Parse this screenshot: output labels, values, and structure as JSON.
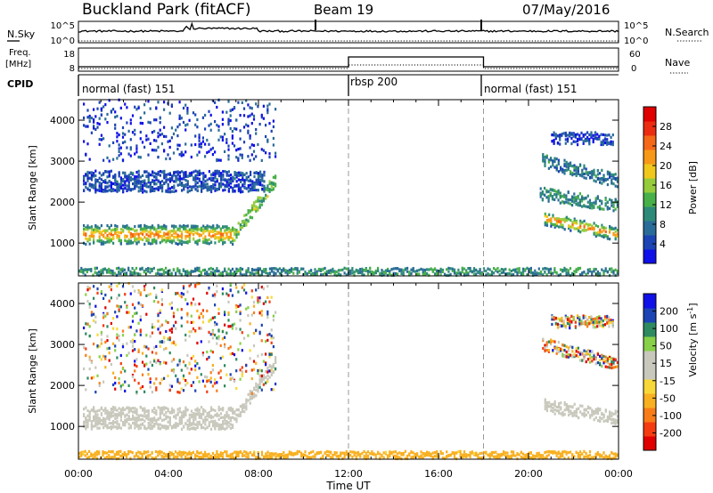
{
  "header": {
    "title": "Buckland Park (fitACF)",
    "beam": "Beam 19",
    "date": "07/May/2016"
  },
  "strips": {
    "nsky_label": "N.Sky",
    "nsky_ticks": [
      "10^5",
      "10^0"
    ],
    "nsearch_label": "N.Search",
    "nsearch_ticks": [
      "10^5",
      "10^0"
    ],
    "freq_label": "Freq.",
    "freq_unit": "[MHz]",
    "freq_ticks": [
      "18",
      "8"
    ],
    "nave_label": "Nave",
    "nave_ticks": [
      "60",
      "0"
    ],
    "cpid_label": "CPID"
  },
  "cpid_segments": [
    {
      "label": "normal (fast) 151",
      "start_hour": 0,
      "end_hour": 12
    },
    {
      "label": "rbsp 200",
      "start_hour": 12,
      "end_hour": 18
    },
    {
      "label": "normal (fast) 151",
      "start_hour": 18,
      "end_hour": 24
    }
  ],
  "colors": {
    "power_scale": [
      "#1010e8",
      "#1c44b4",
      "#2a6c98",
      "#2e8a78",
      "#48b048",
      "#96cc3c",
      "#f0c81c",
      "#f89818",
      "#f46818",
      "#ec2c10",
      "#e00000"
    ],
    "velocity_scale": [
      "#e00000",
      "#f43c10",
      "#f87c18",
      "#f8b020",
      "#f8d838",
      "#c8c8bc",
      "#c8c8bc",
      "#88d048",
      "#2e8a60",
      "#1c44b4",
      "#1010e8"
    ]
  },
  "chart_data": [
    {
      "type": "heatmap",
      "title": "",
      "xlabel": "",
      "ylabel": "Slant Range [km]",
      "x_unit": "hours UT",
      "xlim": [
        0,
        24
      ],
      "ylim": [
        200,
        4500
      ],
      "yticks": [
        1000,
        2000,
        3000,
        4000
      ],
      "colorbar": {
        "label": "Power [dB]",
        "range": [
          0,
          32
        ],
        "ticks": [
          4,
          8,
          12,
          16,
          20,
          24,
          28
        ]
      },
      "features": [
        {
          "kind": "band",
          "t0": 0.2,
          "t1": 6.9,
          "r_center": 1200,
          "r_halfwidth": 230,
          "peak_db": 26,
          "note": "strong near-range band"
        },
        {
          "kind": "rising",
          "t0": 6.9,
          "t1": 8.8,
          "r_start": 1200,
          "r_end": 2600,
          "peak_db": 18
        },
        {
          "kind": "band",
          "t0": 0.2,
          "t1": 8.3,
          "r_center": 2500,
          "r_halfwidth": 260,
          "peak_db": 9
        },
        {
          "kind": "scatter",
          "t0": 0.2,
          "t1": 8.8,
          "r_lo": 3000,
          "r_hi": 4500,
          "peak_db": 8
        },
        {
          "kind": "falling",
          "t0": 20.7,
          "t1": 24.0,
          "r_start": 1600,
          "r_end": 1200,
          "peak_db": 26,
          "note": "strong evening band"
        },
        {
          "kind": "falling",
          "t0": 20.5,
          "t1": 24.0,
          "r_start": 2200,
          "r_end": 1900,
          "peak_db": 14
        },
        {
          "kind": "falling",
          "t0": 20.6,
          "t1": 24.0,
          "r_start": 3000,
          "r_end": 2500,
          "peak_db": 12
        },
        {
          "kind": "band",
          "t0": 21.0,
          "t1": 23.8,
          "r_center": 3550,
          "r_halfwidth": 150,
          "peak_db": 8
        },
        {
          "kind": "groundscatter",
          "t0": 0.0,
          "t1": 24.0,
          "r_center": 300,
          "r_halfwidth": 90,
          "peak_db": 14
        }
      ]
    },
    {
      "type": "heatmap",
      "title": "",
      "xlabel": "Time UT",
      "ylabel": "Slant Range [km]",
      "x_unit": "hours UT",
      "xlim": [
        0,
        24
      ],
      "ylim": [
        200,
        4500
      ],
      "yticks": [
        1000,
        2000,
        3000,
        4000
      ],
      "xticks": [
        "00:00",
        "04:00",
        "08:00",
        "12:00",
        "16:00",
        "20:00",
        "00:00"
      ],
      "colorbar": {
        "label": "Velocity [m s^-1]",
        "range": [
          -250,
          250
        ],
        "tick_labels": [
          "200",
          "100",
          "50",
          "15",
          "-15",
          "-50",
          "-100",
          "-200"
        ]
      },
      "features": [
        {
          "kind": "band",
          "t0": 0.2,
          "t1": 6.9,
          "r_center": 1200,
          "r_halfwidth": 270,
          "velocity": 0,
          "note": "grey low-velocity band"
        },
        {
          "kind": "rising",
          "t0": 6.9,
          "t1": 8.8,
          "r_start": 1200,
          "r_end": 2600,
          "velocity": 0
        },
        {
          "kind": "scatter",
          "t0": 0.2,
          "t1": 8.8,
          "r_lo": 1800,
          "r_hi": 4500,
          "velocity": "mixed"
        },
        {
          "kind": "falling",
          "t0": 20.7,
          "t1": 24.0,
          "r_start": 1500,
          "r_end": 1200,
          "velocity": 0
        },
        {
          "kind": "falling",
          "t0": 20.6,
          "t1": 24.0,
          "r_start": 3000,
          "r_end": 2500,
          "velocity": "mixed"
        },
        {
          "kind": "band",
          "t0": 21.0,
          "t1": 23.8,
          "r_center": 3550,
          "r_halfwidth": 150,
          "velocity": "mixed"
        },
        {
          "kind": "groundscatter",
          "t0": 0.0,
          "t1": 24.0,
          "r_center": 300,
          "r_halfwidth": 90,
          "velocity": -80
        }
      ]
    }
  ]
}
